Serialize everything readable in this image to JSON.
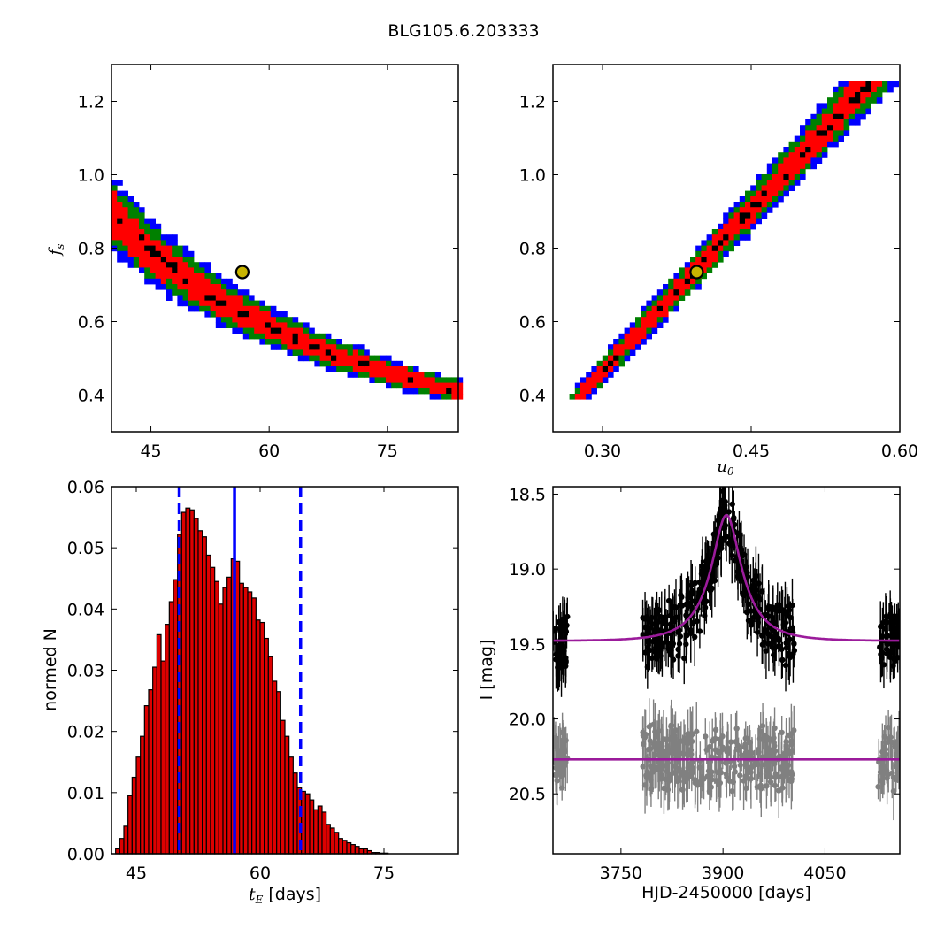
{
  "title": "BLG105.6.203333",
  "chart_data": [
    {
      "type": "heatmap",
      "xlabel": "",
      "ylabel_main": "f",
      "ylabel_sub": "s",
      "xlim": [
        40,
        84
      ],
      "ylim": [
        0.3,
        1.3
      ],
      "xticks": [
        45,
        60,
        75
      ],
      "yticks": [
        0.4,
        0.6,
        0.8,
        1.0,
        1.2
      ],
      "xtick_labels": [
        "45",
        "60",
        "75"
      ],
      "ytick_labels": [
        "0.4",
        "0.6",
        "0.8",
        "1.0",
        "1.2"
      ],
      "region_colors": {
        "outer": "#0000ff",
        "middle": "#008000",
        "inner": "#ff0000",
        "core": "#000000"
      },
      "marker": {
        "x": 56.6,
        "y": 0.735,
        "fill": "#c8b400",
        "stroke": "#000000"
      }
    },
    {
      "type": "heatmap",
      "xlabel_main": "u",
      "xlabel_sub": "0",
      "xlim": [
        0.25,
        0.6
      ],
      "ylim": [
        0.3,
        1.3
      ],
      "xticks": [
        0.3,
        0.45,
        0.6
      ],
      "yticks": [
        0.4,
        0.6,
        0.8,
        1.0,
        1.2
      ],
      "xtick_labels": [
        "0.30",
        "0.45",
        "0.60"
      ],
      "ytick_labels": [
        "0.4",
        "0.6",
        "0.8",
        "1.0",
        "1.2"
      ],
      "region_colors": {
        "outer": "#0000ff",
        "middle": "#008000",
        "inner": "#ff0000",
        "core": "#000000"
      },
      "marker": {
        "x": 0.395,
        "y": 0.735,
        "fill": "#c8b400",
        "stroke": "#000000"
      }
    },
    {
      "type": "bar",
      "xlabel_main": "t",
      "xlabel_sub": "E",
      "xlabel_rest": " [days]",
      "ylabel": "normed N",
      "xlim": [
        42,
        84
      ],
      "ylim": [
        0,
        0.06
      ],
      "xticks": [
        45,
        60,
        75
      ],
      "yticks": [
        0.0,
        0.01,
        0.02,
        0.03,
        0.04,
        0.05,
        0.06
      ],
      "xtick_labels": [
        "45",
        "60",
        "75"
      ],
      "ytick_labels": [
        "0.00",
        "0.01",
        "0.02",
        "0.03",
        "0.04",
        "0.05",
        "0.06"
      ],
      "bin_start": 42.5,
      "bin_width": 0.5,
      "values": [
        0.0008,
        0.0025,
        0.0045,
        0.0095,
        0.0125,
        0.0158,
        0.0192,
        0.0242,
        0.0268,
        0.0305,
        0.0358,
        0.0315,
        0.0375,
        0.0412,
        0.0448,
        0.0522,
        0.0558,
        0.0565,
        0.0562,
        0.0548,
        0.0528,
        0.0518,
        0.0488,
        0.0468,
        0.0445,
        0.0408,
        0.0435,
        0.0452,
        0.0482,
        0.0478,
        0.0442,
        0.0435,
        0.0428,
        0.0418,
        0.0382,
        0.0378,
        0.0352,
        0.0322,
        0.0282,
        0.0265,
        0.0218,
        0.0192,
        0.0158,
        0.0132,
        0.0108,
        0.0102,
        0.0098,
        0.0088,
        0.0072,
        0.0078,
        0.0068,
        0.0048,
        0.0042,
        0.0035,
        0.0025,
        0.0022,
        0.0018,
        0.0015,
        0.0012,
        0.0008,
        0.0008,
        0.0005,
        0.0002,
        0.0002,
        0.0001,
        0.0001
      ],
      "bar_color": "#dd0000",
      "vlines": [
        {
          "x": 50.2,
          "style": "dashed",
          "color": "#0000ff"
        },
        {
          "x": 56.9,
          "style": "solid",
          "color": "#0000ff"
        },
        {
          "x": 64.9,
          "style": "dashed",
          "color": "#0000ff"
        }
      ]
    },
    {
      "type": "scatter",
      "xlabel": "HJD-2450000 [days]",
      "ylabel": "I [mag]",
      "xlim": [
        3650,
        4160
      ],
      "ylim": [
        20.9,
        18.45
      ],
      "xticks": [
        3750,
        3900,
        4050
      ],
      "yticks": [
        18.5,
        19.0,
        19.5,
        20.0,
        20.5
      ],
      "xtick_labels": [
        "3750",
        "3900",
        "4050"
      ],
      "ytick_labels": [
        "18.5",
        "19.0",
        "19.5",
        "20.0",
        "20.5"
      ],
      "series": [
        {
          "color": "#000000",
          "baseline": 19.48,
          "peak": 18.64,
          "t0": 3905,
          "tE": 56,
          "u0": 0.395
        },
        {
          "color": "#808080",
          "baseline": 20.27,
          "peak": 20.27,
          "t0": 3905,
          "tE": 56,
          "u0": 0.395
        }
      ],
      "model_color": "#9b1b9b"
    }
  ]
}
